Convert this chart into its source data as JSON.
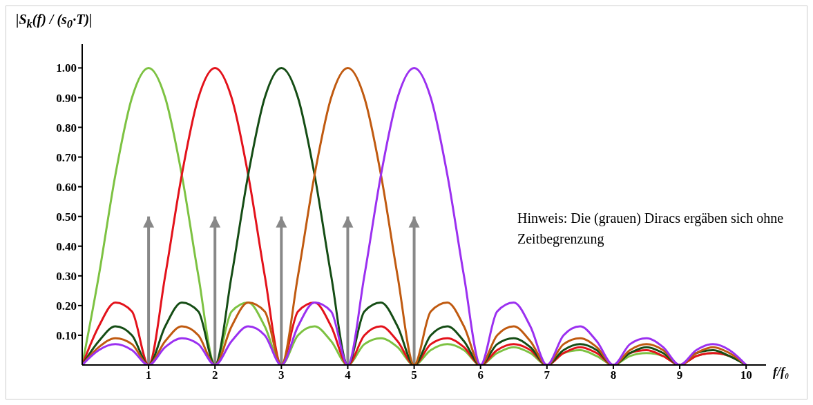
{
  "chart_data": {
    "type": "line",
    "ylabel": "|S$_{k}$(f) / (s$_{0}$·T)|",
    "xlabel": "f/f₀",
    "annotations": [
      "Hinweis: Die (grauen) Diracs ergäben sich ohne Zeitbegrenzung"
    ],
    "x": [
      0,
      0.25,
      0.5,
      0.75,
      1,
      1.25,
      1.5,
      1.75,
      2,
      2.25,
      2.5,
      2.75,
      3,
      3.25,
      3.5,
      3.75,
      4,
      4.25,
      4.5,
      4.75,
      5,
      5.25,
      5.5,
      5.75,
      6,
      6.25,
      6.5,
      6.75,
      7,
      7.25,
      7.5,
      7.75,
      8,
      8.25,
      8.5,
      8.75,
      9,
      9.25,
      9.5,
      9.75,
      10
    ],
    "series": [
      {
        "type": "bar",
        "color": "#888888",
        "x": [
          1,
          2,
          3,
          4,
          5
        ],
        "values": [
          0.5,
          0.5,
          0.5,
          0.5,
          0.5
        ]
      },
      {
        "color": "#7dc242",
        "values": [
          0,
          0.3,
          0.64,
          0.9,
          1,
          0.9,
          0.64,
          0.3,
          0,
          0.18,
          0.21,
          0.13,
          0,
          0.1,
          0.13,
          0.08,
          0,
          0.07,
          0.09,
          0.06,
          0,
          0.05,
          0.07,
          0.05,
          0,
          0.04,
          0.06,
          0.04,
          0,
          0.04,
          0.05,
          0.03,
          0,
          0.03,
          0.04,
          0.03,
          0,
          0.03,
          0.04,
          0.03,
          0
        ]
      },
      {
        "color": "#e3121b",
        "values": [
          0,
          0.13,
          0.21,
          0.18,
          0,
          0.3,
          0.64,
          0.9,
          1,
          0.9,
          0.64,
          0.3,
          0,
          0.18,
          0.21,
          0.13,
          0,
          0.1,
          0.13,
          0.08,
          0,
          0.07,
          0.09,
          0.06,
          0,
          0.05,
          0.07,
          0.05,
          0,
          0.04,
          0.06,
          0.04,
          0,
          0.04,
          0.05,
          0.03,
          0,
          0.03,
          0.04,
          0.03,
          0
        ]
      },
      {
        "color": "#154d15",
        "values": [
          0,
          0.08,
          0.13,
          0.1,
          0,
          0.13,
          0.21,
          0.18,
          0,
          0.3,
          0.64,
          0.9,
          1,
          0.9,
          0.64,
          0.3,
          0,
          0.18,
          0.21,
          0.13,
          0,
          0.1,
          0.13,
          0.08,
          0,
          0.07,
          0.09,
          0.06,
          0,
          0.05,
          0.07,
          0.05,
          0,
          0.04,
          0.06,
          0.04,
          0,
          0.04,
          0.05,
          0.03,
          0
        ]
      },
      {
        "color": "#c05a10",
        "values": [
          0,
          0.06,
          0.09,
          0.07,
          0,
          0.08,
          0.13,
          0.1,
          0,
          0.13,
          0.21,
          0.18,
          0,
          0.3,
          0.64,
          0.9,
          1,
          0.9,
          0.64,
          0.3,
          0,
          0.18,
          0.21,
          0.13,
          0,
          0.1,
          0.13,
          0.08,
          0,
          0.07,
          0.09,
          0.06,
          0,
          0.05,
          0.07,
          0.05,
          0,
          0.04,
          0.06,
          0.04,
          0
        ]
      },
      {
        "color": "#9b30f0",
        "values": [
          0,
          0.05,
          0.07,
          0.05,
          0,
          0.06,
          0.09,
          0.07,
          0,
          0.08,
          0.13,
          0.1,
          0,
          0.13,
          0.21,
          0.18,
          0,
          0.3,
          0.64,
          0.9,
          1,
          0.9,
          0.64,
          0.3,
          0,
          0.18,
          0.21,
          0.13,
          0,
          0.1,
          0.13,
          0.08,
          0,
          0.07,
          0.09,
          0.06,
          0,
          0.05,
          0.07,
          0.05,
          0
        ]
      }
    ],
    "xlim": [
      0,
      10.3
    ],
    "xticks": [
      1,
      2,
      3,
      4,
      5,
      6,
      7,
      8,
      9,
      10
    ],
    "ylim": [
      0,
      1.08
    ],
    "yticks": [
      {
        "value": 0.1,
        "label": "0.10"
      },
      {
        "value": 0.2,
        "label": "0.20"
      },
      {
        "value": 0.3,
        "label": "0.30"
      },
      {
        "value": 0.4,
        "label": "0.40"
      },
      {
        "value": 0.5,
        "label": "0.50"
      },
      {
        "value": 0.6,
        "label": "0.60"
      },
      {
        "value": 0.7,
        "label": "0.70"
      },
      {
        "value": 0.8,
        "label": "0.80"
      },
      {
        "value": 0.9,
        "label": "0.90"
      },
      {
        "value": 1,
        "label": "1.00"
      }
    ],
    "grid": false,
    "legend": false,
    "marker": "none",
    "line_style": "solid"
  }
}
